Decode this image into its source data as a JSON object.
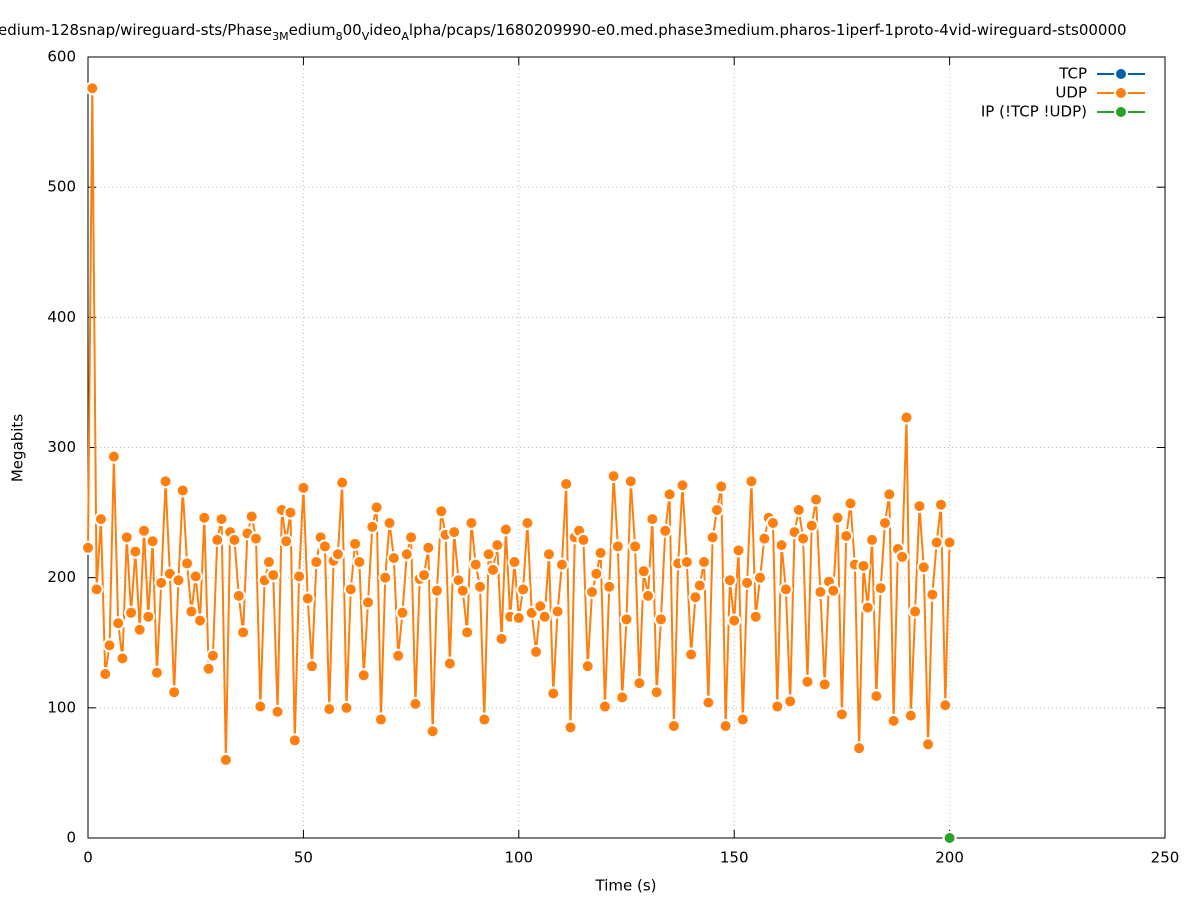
{
  "chart_data": {
    "type": "line",
    "title_segments": [
      {
        "text": "edium-128snap/wireguard-sts/Phase",
        "sub": false
      },
      {
        "text": "3M",
        "sub": true
      },
      {
        "text": "edium",
        "sub": false
      },
      {
        "text": "8",
        "sub": true
      },
      {
        "text": "00",
        "sub": false
      },
      {
        "text": "V",
        "sub": true
      },
      {
        "text": "ideo",
        "sub": false
      },
      {
        "text": "A",
        "sub": true
      },
      {
        "text": "lpha/pcaps/1680209990-e0.med.phase3medium.pharos-1iperf-1proto-4vid-wireguard-sts00000",
        "sub": false
      }
    ],
    "xlabel": "Time (s)",
    "ylabel": "Megabits",
    "xlim": [
      0,
      250
    ],
    "ylim": [
      0,
      600
    ],
    "xticks": [
      0,
      50,
      100,
      150,
      200,
      250
    ],
    "yticks": [
      0,
      100,
      200,
      300,
      400,
      500,
      600
    ],
    "grid": true,
    "legend": "top-right",
    "series": [
      {
        "name": "TCP",
        "color": "#0060ad",
        "x": [],
        "values": []
      },
      {
        "name": "UDP",
        "color": "#ff7f0e",
        "x": [
          0,
          1,
          2,
          3,
          4,
          5,
          6,
          7,
          8,
          9,
          10,
          11,
          12,
          13,
          14,
          15,
          16,
          17,
          18,
          19,
          20,
          21,
          22,
          23,
          24,
          25,
          26,
          27,
          28,
          29,
          30,
          31,
          32,
          33,
          34,
          35,
          36,
          37,
          38,
          39,
          40,
          41,
          42,
          43,
          44,
          45,
          46,
          47,
          48,
          49,
          50,
          51,
          52,
          53,
          54,
          55,
          56,
          57,
          58,
          59,
          60,
          61,
          62,
          63,
          64,
          65,
          66,
          67,
          68,
          69,
          70,
          71,
          72,
          73,
          74,
          75,
          76,
          77,
          78,
          79,
          80,
          81,
          82,
          83,
          84,
          85,
          86,
          87,
          88,
          89,
          90,
          91,
          92,
          93,
          94,
          95,
          96,
          97,
          98,
          99,
          100,
          101,
          102,
          103,
          104,
          105,
          106,
          107,
          108,
          109,
          110,
          111,
          112,
          113,
          114,
          115,
          116,
          117,
          118,
          119,
          120,
          121,
          122,
          123,
          124,
          125,
          126,
          127,
          128,
          129,
          130,
          131,
          132,
          133,
          134,
          135,
          136,
          137,
          138,
          139,
          140,
          141,
          142,
          143,
          144,
          145,
          146,
          147,
          148,
          149,
          150,
          151,
          152,
          153,
          154,
          155,
          156,
          157,
          158,
          159,
          160,
          161,
          162,
          163,
          164,
          165,
          166,
          167,
          168,
          169,
          170,
          171,
          172,
          173,
          174,
          175,
          176,
          177,
          178,
          179,
          180,
          181,
          182,
          183,
          184,
          185,
          186,
          187,
          188,
          189,
          190,
          191,
          192,
          193,
          194,
          195,
          196,
          197,
          198,
          199,
          200
        ],
        "values": [
          223,
          576,
          191,
          245,
          126,
          148,
          293,
          165,
          138,
          231,
          173,
          220,
          160,
          236,
          170,
          228,
          127,
          196,
          274,
          203,
          112,
          198,
          267,
          211,
          174,
          201,
          167,
          246,
          130,
          140,
          229,
          245,
          60,
          235,
          229,
          186,
          158,
          234,
          247,
          230,
          101,
          198,
          212,
          202,
          97,
          252,
          228,
          250,
          75,
          201,
          269,
          184,
          132,
          212,
          231,
          224,
          99,
          213,
          218,
          273,
          100,
          191,
          226,
          212,
          125,
          181,
          239,
          254,
          91,
          200,
          242,
          215,
          140,
          173,
          218,
          231,
          103,
          199,
          202,
          223,
          82,
          190,
          251,
          233,
          134,
          235,
          198,
          190,
          158,
          242,
          210,
          193,
          91,
          218,
          206,
          225,
          153,
          237,
          170,
          212,
          169,
          191,
          242,
          173,
          143,
          178,
          170,
          218,
          111,
          174,
          210,
          272,
          85,
          231,
          236,
          229,
          132,
          189,
          203,
          219,
          101,
          193,
          278,
          224,
          108,
          168,
          274,
          224,
          119,
          205,
          186,
          245,
          112,
          168,
          236,
          264,
          86,
          211,
          271,
          212,
          141,
          185,
          194,
          212,
          104,
          231,
          252,
          270,
          86,
          198,
          167,
          221,
          91,
          196,
          274,
          170,
          200,
          230,
          246,
          242,
          101,
          225,
          191,
          105,
          235,
          252,
          230,
          120,
          240,
          260,
          189,
          118,
          197,
          190,
          246,
          95,
          232,
          257,
          210,
          69,
          209,
          177,
          229,
          109,
          192,
          242,
          264,
          90,
          222,
          216,
          323,
          94,
          174,
          255,
          208,
          72,
          187,
          227,
          256,
          102,
          227
        ]
      },
      {
        "name": "IP (!TCP  !UDP)",
        "color": "#2ca02c",
        "x": [
          200
        ],
        "values": [
          0
        ]
      }
    ]
  }
}
